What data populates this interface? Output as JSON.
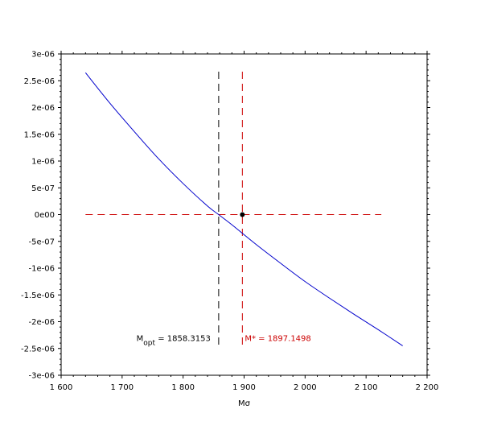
{
  "chart_data": {
    "type": "line",
    "title": "",
    "xlabel": "Mσ",
    "ylabel": "",
    "xlim": [
      1600,
      2200
    ],
    "ylim": [
      -3e-06,
      3e-06
    ],
    "grid": false,
    "x_ticks": [
      1600,
      1700,
      1800,
      1900,
      2000,
      2100,
      2200
    ],
    "x_tick_labels": [
      "1 600",
      "1 700",
      "1 800",
      "1 900",
      "2 000",
      "2 100",
      "2 200"
    ],
    "y_ticks": [
      3e-06,
      2.5e-06,
      2e-06,
      1.5e-06,
      1e-06,
      5e-07,
      0,
      -5e-07,
      -1e-06,
      -1.5e-06,
      -2e-06,
      -2.5e-06,
      -3e-06
    ],
    "y_tick_labels": [
      "3e-06",
      "2.5e-06",
      "2e-06",
      "1.5e-06",
      "1e-06",
      "5e-07",
      "0e00",
      "-5e-07",
      "-1e-06",
      "-1.5e-06",
      "-2e-06",
      "-2.5e-06",
      "-3e-06"
    ],
    "series": [
      {
        "color": "#0000cc",
        "x": [
          1640,
          1680,
          1720,
          1760,
          1800,
          1840,
          1858.3,
          1880,
          1920,
          1960,
          2000,
          2040,
          2080,
          2120,
          2160
        ],
        "y": [
          2.65e-06,
          2.08e-06,
          1.55e-06,
          1.04e-06,
          5.8e-07,
          1.6e-07,
          0,
          -1.9e-07,
          -5.6e-07,
          -9.1e-07,
          -1.25e-06,
          -1.56e-06,
          -1.86e-06,
          -2.15e-06,
          -2.45e-06
        ]
      }
    ],
    "reference_lines": {
      "horizontal_zero": {
        "y": 0,
        "x_range": [
          1640,
          2125
        ],
        "color": "#cc0000",
        "style": "dashed"
      },
      "vertical_opt": {
        "x": 1858.3153,
        "y_range": [
          -2.45e-06,
          2.67e-06
        ],
        "color": "#000000",
        "style": "dashed"
      },
      "vertical_star": {
        "x": 1897.1498,
        "y_range": [
          -2.45e-06,
          2.67e-06
        ],
        "color": "#cc0000",
        "style": "dashed"
      }
    },
    "marker_point": {
      "x": 1897.1498,
      "y": 0,
      "color": "#000000"
    },
    "annotations": [
      {
        "label_main": "M",
        "label_sub": "opt",
        "label_value": " = 1858.3153",
        "x": 1858.3153,
        "y": -2.3e-06,
        "anchor": "end",
        "color": "#000000"
      },
      {
        "label_main": "M* = 1897.1498",
        "label_sub": "",
        "label_value": "",
        "x": 1897.1498,
        "y": -2.3e-06,
        "anchor": "start",
        "color": "#cc0000"
      }
    ]
  }
}
